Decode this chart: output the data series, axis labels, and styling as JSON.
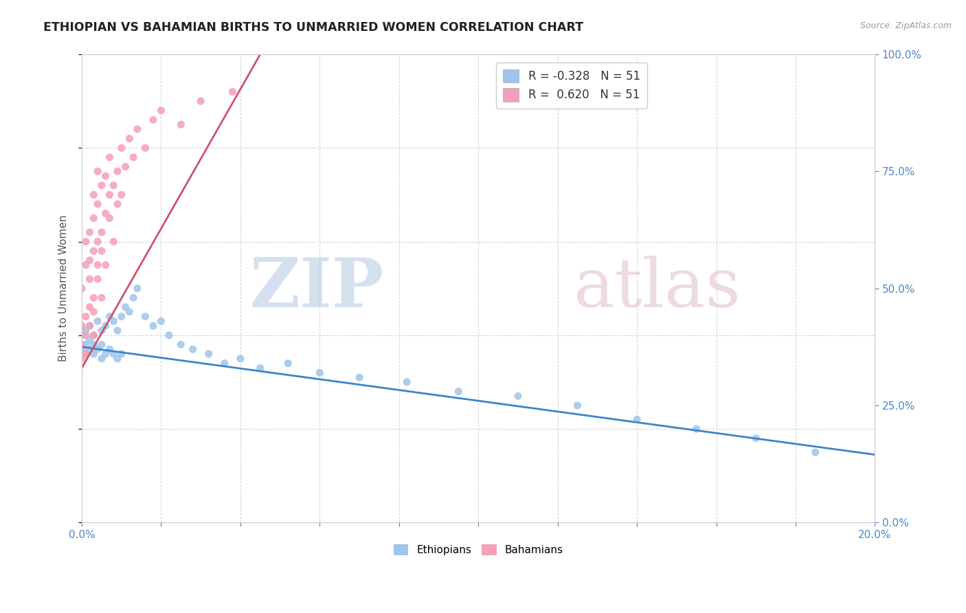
{
  "title": "ETHIOPIAN VS BAHAMIAN BIRTHS TO UNMARRIED WOMEN CORRELATION CHART",
  "source": "Source: ZipAtlas.com",
  "ylabel": "Births to Unmarried Women",
  "xlim": [
    0.0,
    0.2
  ],
  "ylim": [
    0.0,
    1.0
  ],
  "background_color": "#ffffff",
  "legend_r_blue": "R = -0.328",
  "legend_r_pink": "R =  0.620",
  "legend_n_blue": "N = 51",
  "legend_n_pink": "N = 51",
  "blue_scatter_color": "#9fc5e8",
  "pink_scatter_color": "#f4a0b5",
  "blue_line_color": "#3d85c8",
  "pink_line_color": "#d05070",
  "grid_color": "#cccccc",
  "title_color": "#222222",
  "axis_tick_color": "#4a86c8",
  "ylabel_color": "#555555",
  "ethiopians_x": [
    0.0,
    0.0,
    0.001,
    0.001,
    0.001,
    0.002,
    0.002,
    0.002,
    0.003,
    0.003,
    0.003,
    0.004,
    0.004,
    0.005,
    0.005,
    0.005,
    0.006,
    0.006,
    0.007,
    0.007,
    0.008,
    0.008,
    0.009,
    0.009,
    0.01,
    0.01,
    0.011,
    0.012,
    0.013,
    0.014,
    0.016,
    0.018,
    0.02,
    0.022,
    0.025,
    0.028,
    0.032,
    0.036,
    0.04,
    0.045,
    0.052,
    0.06,
    0.07,
    0.082,
    0.095,
    0.11,
    0.125,
    0.14,
    0.155,
    0.17,
    0.185
  ],
  "ethiopians_y": [
    0.37,
    0.4,
    0.38,
    0.36,
    0.41,
    0.39,
    0.37,
    0.42,
    0.4,
    0.38,
    0.36,
    0.43,
    0.37,
    0.41,
    0.38,
    0.35,
    0.42,
    0.36,
    0.44,
    0.37,
    0.43,
    0.36,
    0.41,
    0.35,
    0.44,
    0.36,
    0.46,
    0.45,
    0.48,
    0.5,
    0.44,
    0.42,
    0.43,
    0.4,
    0.38,
    0.37,
    0.36,
    0.34,
    0.35,
    0.33,
    0.34,
    0.32,
    0.31,
    0.3,
    0.28,
    0.27,
    0.25,
    0.22,
    0.2,
    0.18,
    0.15
  ],
  "bahamians_x": [
    0.0,
    0.0,
    0.0,
    0.0,
    0.001,
    0.001,
    0.001,
    0.001,
    0.001,
    0.002,
    0.002,
    0.002,
    0.002,
    0.002,
    0.003,
    0.003,
    0.003,
    0.003,
    0.003,
    0.003,
    0.004,
    0.004,
    0.004,
    0.004,
    0.004,
    0.005,
    0.005,
    0.005,
    0.005,
    0.006,
    0.006,
    0.006,
    0.007,
    0.007,
    0.007,
    0.008,
    0.008,
    0.009,
    0.009,
    0.01,
    0.01,
    0.011,
    0.012,
    0.013,
    0.014,
    0.016,
    0.018,
    0.02,
    0.025,
    0.03,
    0.038
  ],
  "bahamians_y": [
    0.35,
    0.42,
    0.5,
    0.38,
    0.44,
    0.55,
    0.4,
    0.6,
    0.36,
    0.46,
    0.52,
    0.62,
    0.42,
    0.56,
    0.48,
    0.65,
    0.58,
    0.45,
    0.7,
    0.4,
    0.6,
    0.55,
    0.68,
    0.52,
    0.75,
    0.62,
    0.58,
    0.72,
    0.48,
    0.66,
    0.74,
    0.55,
    0.7,
    0.65,
    0.78,
    0.6,
    0.72,
    0.75,
    0.68,
    0.8,
    0.7,
    0.76,
    0.82,
    0.78,
    0.84,
    0.8,
    0.86,
    0.88,
    0.85,
    0.9,
    0.92
  ],
  "blue_trend_x": [
    0.0,
    0.2
  ],
  "blue_trend_y": [
    0.375,
    0.145
  ],
  "pink_trend_x": [
    0.0,
    0.045
  ],
  "pink_trend_y": [
    0.33,
    1.0
  ]
}
